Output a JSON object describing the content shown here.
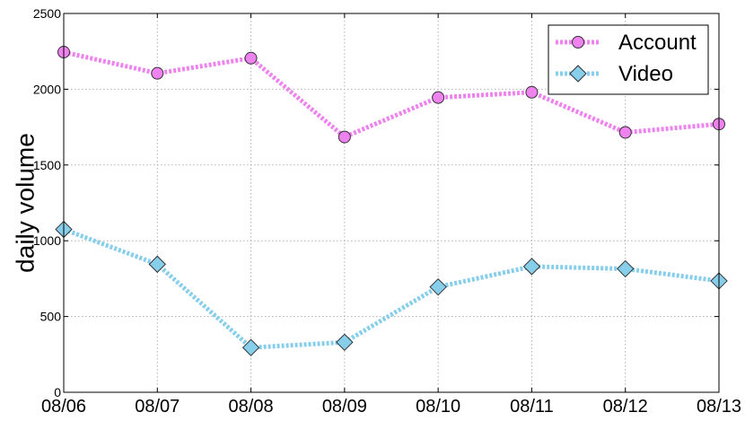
{
  "chart_data": {
    "type": "line",
    "x": [
      "08/06",
      "08/07",
      "08/08",
      "08/09",
      "08/10",
      "08/11",
      "08/12",
      "08/13"
    ],
    "ylabel": "daily volume",
    "ylim": [
      0,
      2500
    ],
    "yticks": [
      "0",
      "500",
      "1000",
      "1500",
      "2000",
      "2500"
    ],
    "grid": true,
    "legend_position": "top-right",
    "series": [
      {
        "name": "Account",
        "marker": "circle",
        "line_style": "dotted",
        "color": "#ee82ee",
        "values": [
          2245,
          2105,
          2205,
          1685,
          1945,
          1980,
          1715,
          1770
        ]
      },
      {
        "name": "Video",
        "marker": "diamond",
        "line_style": "dotted",
        "color": "#87ceeb",
        "values": [
          1075,
          845,
          295,
          330,
          695,
          830,
          815,
          735
        ]
      }
    ]
  }
}
